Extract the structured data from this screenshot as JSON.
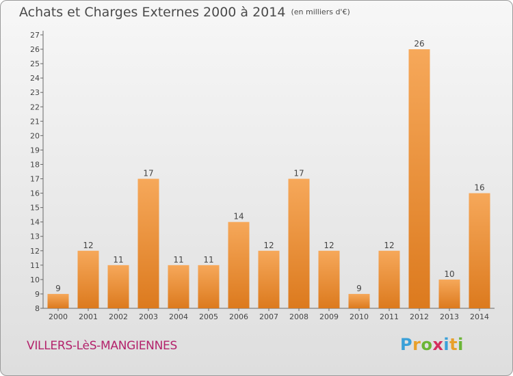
{
  "title": "Achats et Charges Externes 2000 à 2014",
  "unit_label": "(en milliers d'€)",
  "commune": "VILLERS-LèS-MANGIENNES",
  "logo": {
    "letters": [
      "P",
      "r",
      "o",
      "x",
      "i",
      "t",
      "i"
    ],
    "colors": [
      "#3aa0d8",
      "#e8a02b",
      "#6bb536",
      "#d42e5e",
      "#3aa0d8",
      "#e8a02b",
      "#6bb536"
    ]
  },
  "chart_data": {
    "type": "bar",
    "categories": [
      "2000",
      "2001",
      "2002",
      "2003",
      "2004",
      "2005",
      "2006",
      "2007",
      "2008",
      "2009",
      "2010",
      "2011",
      "2012",
      "2013",
      "2014"
    ],
    "values": [
      9,
      12,
      11,
      17,
      11,
      11,
      14,
      12,
      17,
      12,
      9,
      12,
      26,
      10,
      16
    ],
    "ylim": [
      8,
      27
    ],
    "yticks": [
      8,
      9,
      10,
      11,
      12,
      13,
      14,
      15,
      16,
      17,
      18,
      19,
      20,
      21,
      22,
      23,
      24,
      25,
      26,
      27
    ],
    "grid": false,
    "bar_color": "#f0902e"
  }
}
